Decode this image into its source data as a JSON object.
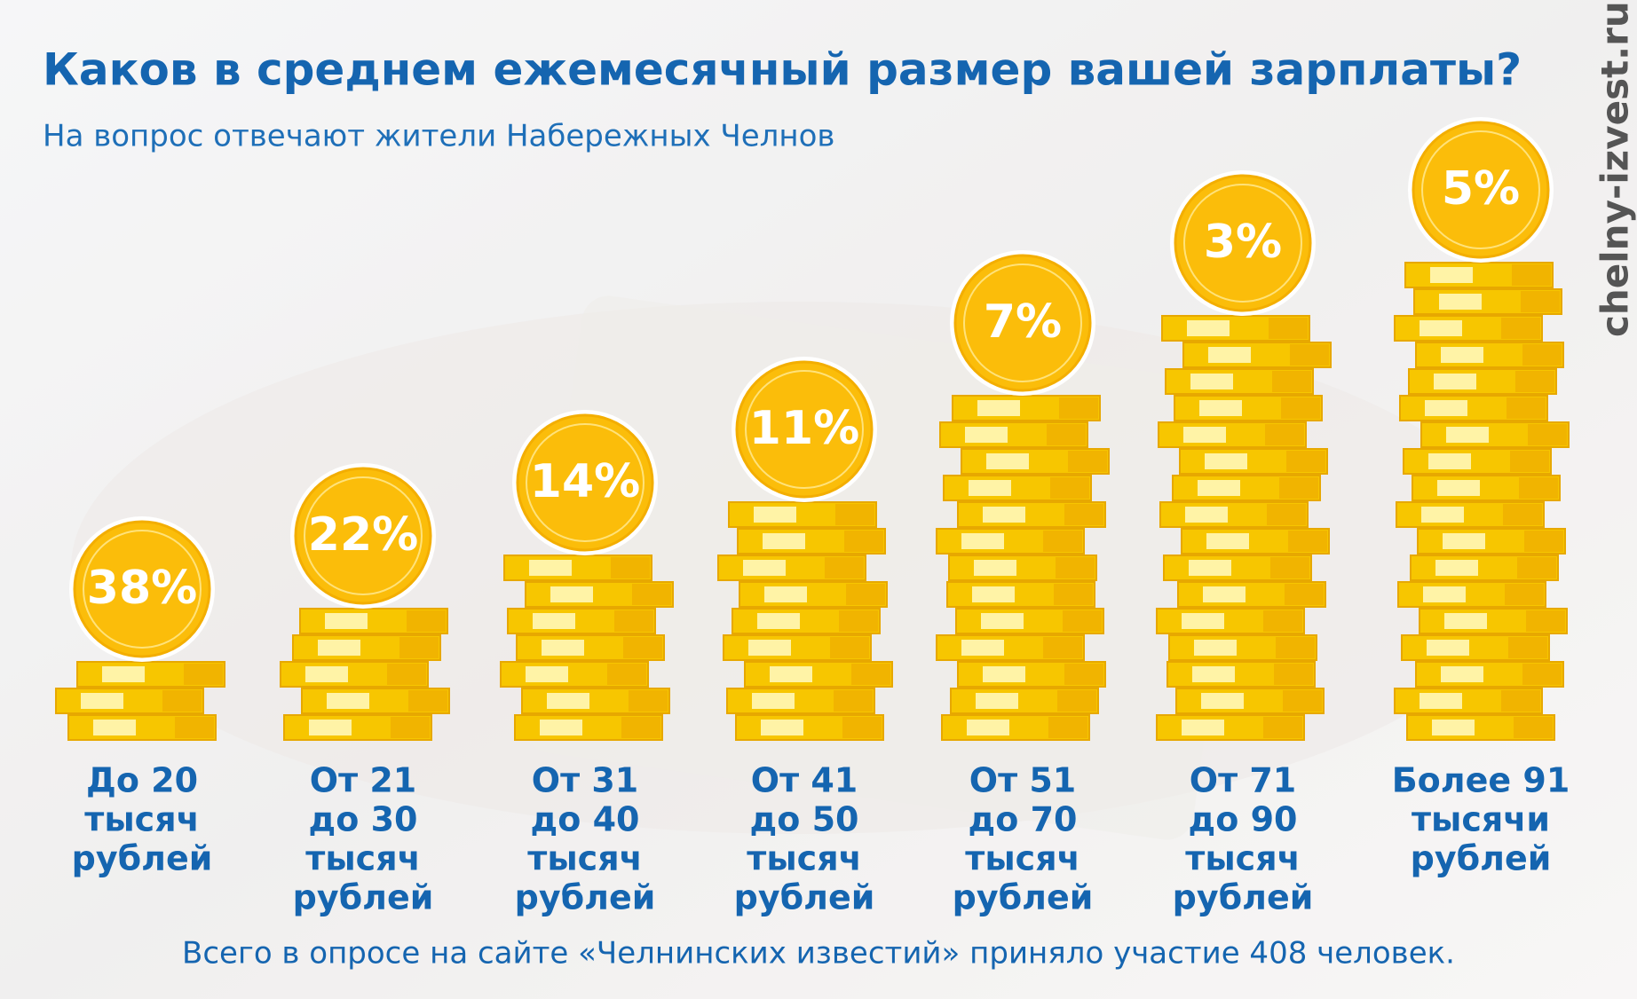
{
  "chart_data": {
    "type": "bar",
    "title": "Каков в среднем ежемесячный размер вашей зарплаты?",
    "subtitle": "На вопрос отвечают жители Набережных Челнов",
    "categories": [
      [
        "До 20",
        "тысяч",
        "рублей"
      ],
      [
        "От 21",
        "до 30",
        "тысяч",
        "рублей"
      ],
      [
        "От 31",
        "до 40",
        "тысяч",
        "рублей"
      ],
      [
        "От 41",
        "до 50",
        "тысяч",
        "рублей"
      ],
      [
        "От 51",
        "до 70",
        "тысяч",
        "рублей"
      ],
      [
        "От 71",
        "до 90",
        "тысяч",
        "рублей"
      ],
      [
        "Более 91",
        "тысячи",
        "рублей"
      ]
    ],
    "values": [
      38,
      22,
      14,
      11,
      7,
      3,
      5
    ],
    "value_labels": [
      "38%",
      "22%",
      "14%",
      "11%",
      "7%",
      "3%",
      "5%"
    ],
    "color": "#fbbd0a",
    "note": "Всего в опросе на сайте «Челнинских известий» приняло участие 408 человек.",
    "watermark": "chelny-izvest.ru"
  }
}
